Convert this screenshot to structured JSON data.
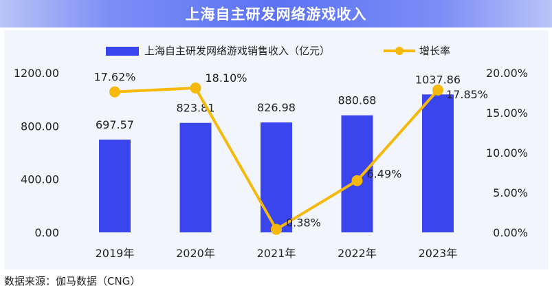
{
  "title": "上海自主研发网络游戏收入",
  "source": "数据来源：伽马数据（CNG）",
  "colors": {
    "bar": "#3b45ee",
    "line": "#f5b80c",
    "title_bg": "#6a7ff4"
  },
  "chart_data": {
    "type": "bar+line",
    "categories": [
      "2019年",
      "2020年",
      "2021年",
      "2022年",
      "2023年"
    ],
    "series": [
      {
        "name": "上海自主研发网络游戏销售收入（亿元）",
        "type": "bar",
        "axis": "left",
        "values": [
          697.57,
          823.81,
          826.98,
          880.68,
          1037.86
        ],
        "labels": [
          "697.57",
          "823.81",
          "826.98",
          "880.68",
          "1037.86"
        ]
      },
      {
        "name": "增长率",
        "type": "line",
        "axis": "right",
        "values": [
          17.62,
          18.1,
          0.38,
          6.49,
          17.85
        ],
        "labels": [
          "17.62%",
          "18.10%",
          "0.38%",
          "6.49%",
          "17.85%"
        ]
      }
    ],
    "y_left": {
      "min": 0,
      "max": 1200,
      "ticks": [
        0,
        400,
        800,
        1200
      ],
      "tick_labels": [
        "0.00",
        "400.00",
        "800.00",
        "1200.00"
      ]
    },
    "y_right": {
      "min": 0,
      "max": 20,
      "ticks": [
        0,
        5,
        10,
        15,
        20
      ],
      "tick_labels": [
        "0.00%",
        "5.00%",
        "10.00%",
        "15.00%",
        "20.00%"
      ]
    },
    "grid": false,
    "legend_position": "top"
  }
}
